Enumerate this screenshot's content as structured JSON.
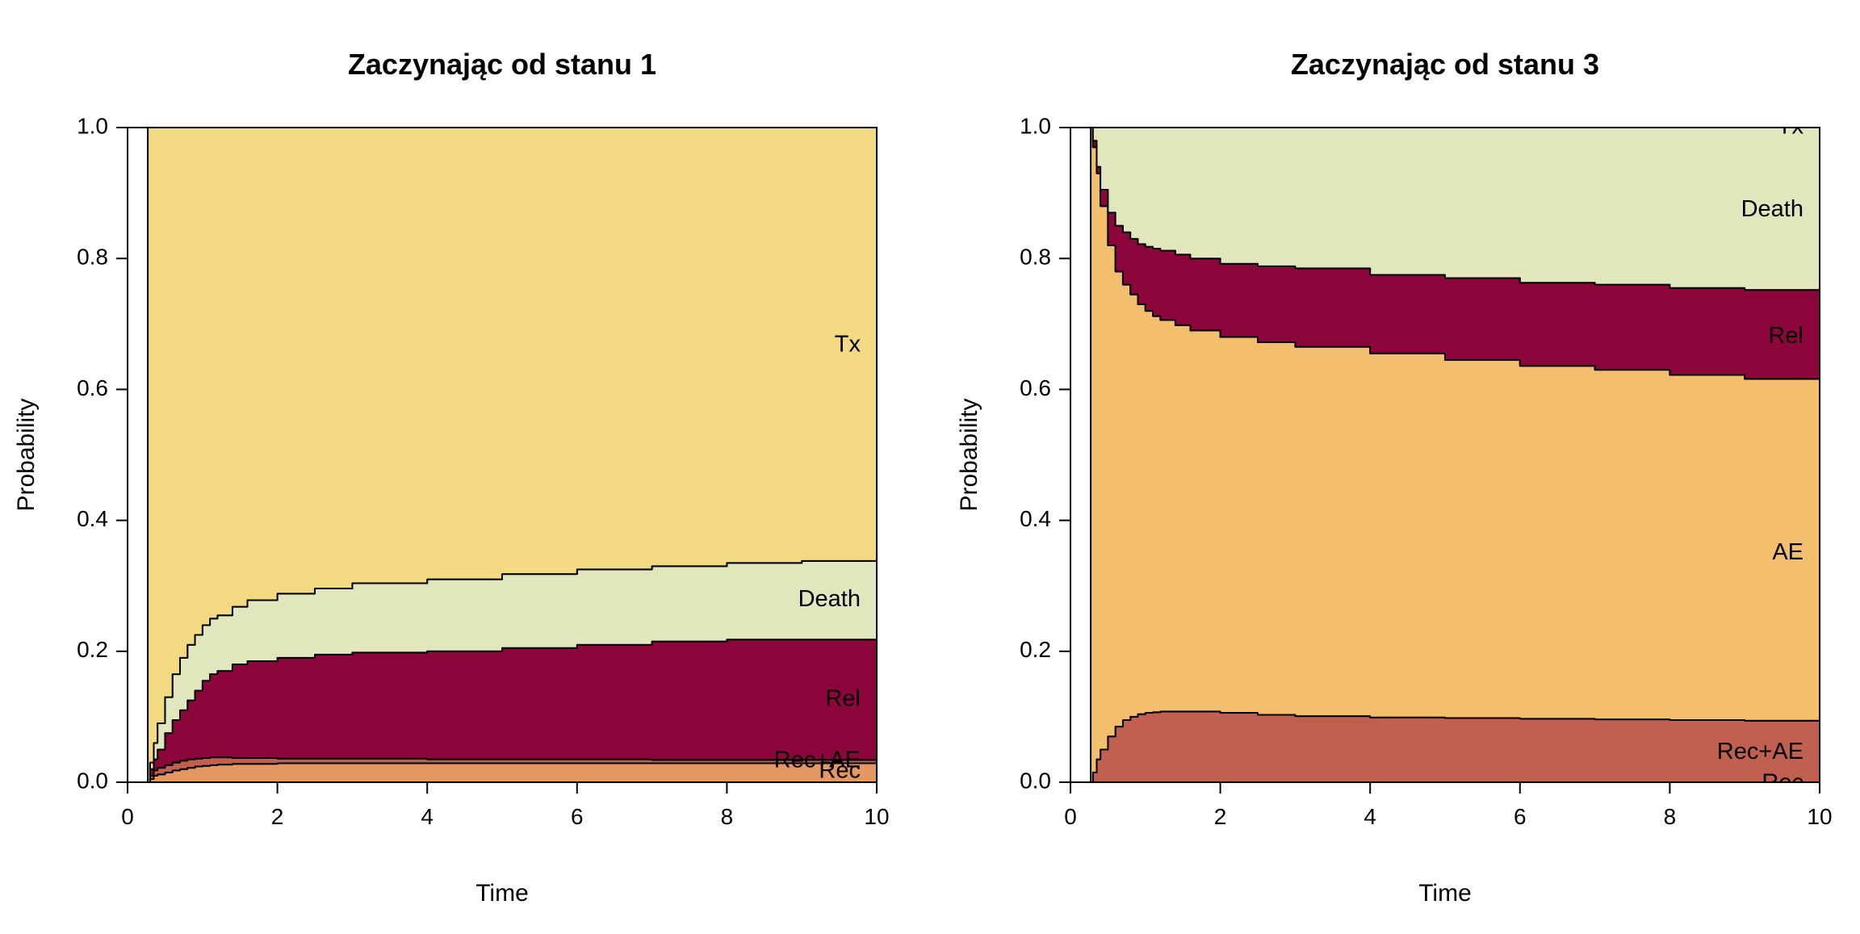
{
  "colors": {
    "Tx": "#f3da82",
    "Death": "#e1e6bd",
    "Rel": "#8c063b",
    "AE": "#f3be6e",
    "Rec+AE": "#c15f51",
    "Rec": "#e49760"
  },
  "chart_data": [
    {
      "type": "area",
      "title": "Zaczynając od stanu 1",
      "xlabel": "Time",
      "ylabel": "Probability",
      "xlim": [
        0,
        10
      ],
      "ylim": [
        0,
        1
      ],
      "x_ticks": [
        "0",
        "2",
        "4",
        "6",
        "8",
        "10"
      ],
      "y_ticks": [
        "0.0",
        "0.2",
        "0.4",
        "0.6",
        "0.8",
        "1.0"
      ],
      "start_time": 0.27,
      "grid": false,
      "x": [
        0.27,
        0.3,
        0.35,
        0.4,
        0.5,
        0.6,
        0.7,
        0.8,
        0.9,
        1.0,
        1.1,
        1.2,
        1.4,
        1.6,
        2.0,
        2.5,
        3.0,
        4.0,
        5.0,
        6.0,
        7.0,
        8.0,
        9.0,
        10.0
      ],
      "series": [
        {
          "name": "Rec",
          "upper": [
            0.0,
            0.005,
            0.01,
            0.012,
            0.015,
            0.018,
            0.02,
            0.022,
            0.024,
            0.025,
            0.026,
            0.027,
            0.028,
            0.028,
            0.029,
            0.029,
            0.029,
            0.029,
            0.029,
            0.029,
            0.029,
            0.029,
            0.029,
            0.029
          ]
        },
        {
          "name": "Rec+AE",
          "upper": [
            0.0,
            0.01,
            0.018,
            0.022,
            0.026,
            0.03,
            0.033,
            0.035,
            0.036,
            0.037,
            0.038,
            0.038,
            0.037,
            0.037,
            0.036,
            0.036,
            0.036,
            0.035,
            0.035,
            0.035,
            0.034,
            0.034,
            0.034,
            0.034
          ]
        },
        {
          "name": "Rel",
          "upper": [
            0.0,
            0.02,
            0.035,
            0.05,
            0.075,
            0.095,
            0.11,
            0.125,
            0.14,
            0.155,
            0.165,
            0.17,
            0.18,
            0.185,
            0.19,
            0.195,
            0.198,
            0.2,
            0.205,
            0.21,
            0.215,
            0.218,
            0.218,
            0.218
          ]
        },
        {
          "name": "Death",
          "upper": [
            0.0,
            0.03,
            0.06,
            0.09,
            0.13,
            0.165,
            0.19,
            0.21,
            0.225,
            0.24,
            0.25,
            0.255,
            0.268,
            0.278,
            0.288,
            0.296,
            0.304,
            0.31,
            0.318,
            0.325,
            0.33,
            0.335,
            0.338,
            0.338
          ]
        },
        {
          "name": "Tx",
          "upper": [
            1.0,
            1.0,
            1.0,
            1.0,
            1.0,
            1.0,
            1.0,
            1.0,
            1.0,
            1.0,
            1.0,
            1.0,
            1.0,
            1.0,
            1.0,
            1.0,
            1.0,
            1.0,
            1.0,
            1.0,
            1.0,
            1.0,
            1.0,
            1.0
          ]
        }
      ],
      "labels": [
        {
          "text": "Tx",
          "y": 0.667
        },
        {
          "text": "Death",
          "y": 0.278
        },
        {
          "text": "Rel",
          "y": 0.126
        },
        {
          "text": "Rec+AE",
          "y": 0.032
        },
        {
          "text": "Rec",
          "y": 0.016
        }
      ]
    },
    {
      "type": "area",
      "title": "Zaczynając od stanu 3",
      "xlabel": "Time",
      "ylabel": "Probability",
      "xlim": [
        0,
        10
      ],
      "ylim": [
        0,
        1
      ],
      "x_ticks": [
        "0",
        "2",
        "4",
        "6",
        "8",
        "10"
      ],
      "y_ticks": [
        "0.0",
        "0.2",
        "0.4",
        "0.6",
        "0.8",
        "1.0"
      ],
      "start_time": 0.27,
      "grid": false,
      "x": [
        0.27,
        0.3,
        0.35,
        0.4,
        0.5,
        0.6,
        0.7,
        0.8,
        0.9,
        1.0,
        1.1,
        1.2,
        1.4,
        1.6,
        2.0,
        2.5,
        3.0,
        4.0,
        5.0,
        6.0,
        7.0,
        8.0,
        9.0,
        10.0
      ],
      "series": [
        {
          "name": "Rec",
          "upper": [
            0.0,
            0.0,
            0.0,
            0.0,
            0.0,
            0.0,
            0.0,
            0.0,
            0.0,
            0.0,
            0.0,
            0.0,
            0.0,
            0.0,
            0.0,
            0.0,
            0.0,
            0.0,
            0.0,
            0.0,
            0.0,
            0.0,
            0.0,
            0.0
          ]
        },
        {
          "name": "Rec+AE",
          "upper": [
            0.0,
            0.015,
            0.035,
            0.05,
            0.07,
            0.085,
            0.095,
            0.1,
            0.104,
            0.106,
            0.107,
            0.108,
            0.108,
            0.108,
            0.106,
            0.103,
            0.101,
            0.099,
            0.098,
            0.097,
            0.096,
            0.095,
            0.094,
            0.089
          ]
        },
        {
          "name": "AE",
          "upper": [
            1.0,
            0.97,
            0.93,
            0.88,
            0.82,
            0.78,
            0.76,
            0.745,
            0.73,
            0.72,
            0.712,
            0.706,
            0.698,
            0.69,
            0.68,
            0.672,
            0.665,
            0.655,
            0.645,
            0.636,
            0.63,
            0.622,
            0.616,
            0.612
          ]
        },
        {
          "name": "Rel",
          "upper": [
            1.0,
            0.98,
            0.94,
            0.905,
            0.87,
            0.85,
            0.84,
            0.83,
            0.822,
            0.818,
            0.815,
            0.812,
            0.806,
            0.8,
            0.792,
            0.788,
            0.785,
            0.775,
            0.77,
            0.763,
            0.76,
            0.755,
            0.752,
            0.748
          ]
        },
        {
          "name": "Death",
          "upper": [
            1.0,
            1.0,
            1.0,
            1.0,
            1.0,
            1.0,
            1.0,
            1.0,
            1.0,
            1.0,
            1.0,
            1.0,
            1.0,
            1.0,
            1.0,
            1.0,
            1.0,
            1.0,
            1.0,
            1.0,
            1.0,
            1.0,
            1.0,
            1.0
          ]
        }
      ],
      "labels": [
        {
          "text": "Tx",
          "y": 1.0
        },
        {
          "text": "Death",
          "y": 0.874
        },
        {
          "text": "Rel",
          "y": 0.68
        },
        {
          "text": "AE",
          "y": 0.35
        },
        {
          "text": "Rec+AE",
          "y": 0.045
        },
        {
          "text": "Rec",
          "y": -0.002
        }
      ]
    }
  ]
}
